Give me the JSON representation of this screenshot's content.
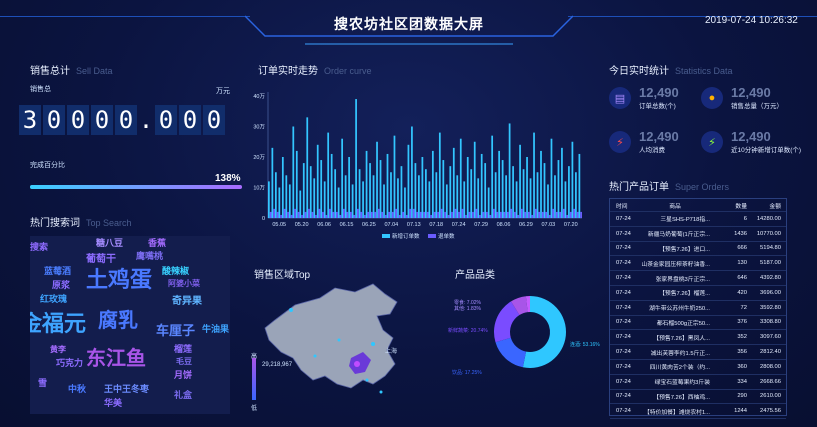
{
  "header": {
    "title": "搜农坊社区团数据大屏",
    "time": "2019-07-24 10:26:32"
  },
  "sales": {
    "title": "销售总计",
    "title_en": "Sell Data",
    "total_label": "销售总",
    "unit": "万元",
    "total_digits": [
      "3",
      "0",
      "0",
      "0",
      "0",
      ".",
      "0",
      "0",
      "0"
    ],
    "completion_label": "完成百分比",
    "completion_pct": "138%",
    "completion_fraction": 1.0
  },
  "search": {
    "title": "热门搜索词",
    "title_en": "Top Search",
    "words": [
      {
        "t": "搜索",
        "c": "#8f6bff",
        "s": 9
      },
      {
        "t": "糖八豆",
        "c": "#a58cff",
        "s": 9
      },
      {
        "t": "葡萄干",
        "c": "#8d6cff",
        "s": 10
      },
      {
        "t": "鹰嘴桃",
        "c": "#7b6cf0",
        "s": 9
      },
      {
        "t": "香蕉",
        "c": "#a46cff",
        "s": 9
      },
      {
        "t": "蓝莓酒",
        "c": "#4a7dff",
        "s": 9
      },
      {
        "t": "土鸡蛋",
        "c": "#4a79ff",
        "s": 22
      },
      {
        "t": "酸辣椒",
        "c": "#38d1ff",
        "s": 9
      },
      {
        "t": "原浆",
        "c": "#8b6cff",
        "s": 9
      },
      {
        "t": "阿婆小菜",
        "c": "#7c5ee8",
        "s": 8
      },
      {
        "t": "红玫瑰",
        "c": "#3ea4ff",
        "s": 9
      },
      {
        "t": "奇异果",
        "c": "#5fb4ff",
        "s": 10
      },
      {
        "t": "金福元",
        "c": "#3ea4ff",
        "s": 22
      },
      {
        "t": "腐乳",
        "c": "#4a79ff",
        "s": 20
      },
      {
        "t": "车厘子",
        "c": "#5a86ff",
        "s": 13
      },
      {
        "t": "牛油果",
        "c": "#3ea4ff",
        "s": 9
      },
      {
        "t": "东江鱼",
        "c": "#a855e8",
        "s": 20
      },
      {
        "t": "黄李",
        "c": "#a46cff",
        "s": 8
      },
      {
        "t": "巧克力",
        "c": "#8d6cff",
        "s": 9
      },
      {
        "t": "榴莲",
        "c": "#8d6cff",
        "s": 9
      },
      {
        "t": "毛豆",
        "c": "#7b6cf0",
        "s": 8
      },
      {
        "t": "月饼",
        "c": "#a46cff",
        "s": 9
      },
      {
        "t": "雪",
        "c": "#8d6cff",
        "s": 9
      },
      {
        "t": "中秋",
        "c": "#4a79ff",
        "s": 9
      },
      {
        "t": "王中王冬枣",
        "c": "#6c8cff",
        "s": 9
      },
      {
        "t": "华美",
        "c": "#8b6cff",
        "s": 9
      },
      {
        "t": "礼盒",
        "c": "#7b6cf0",
        "s": 9
      }
    ]
  },
  "orders": {
    "title": "订单实时走势",
    "title_en": "Order curve",
    "legend": [
      "新增订单数",
      "退单数"
    ]
  },
  "chart_data": {
    "type": "bar",
    "x_ticks": [
      "05.05",
      "05.20",
      "06.06",
      "06.15",
      "06.25",
      "07.04",
      "07.13",
      "07.18",
      "07.24",
      "07.29",
      "08.06",
      "06.29",
      "07.03",
      "07.20"
    ],
    "y_ticks": [
      "0",
      "10万",
      "20万",
      "30万",
      "40万"
    ],
    "ylim": [
      0,
      40
    ],
    "series": [
      {
        "name": "新增订单数",
        "color": "#33c6ff",
        "values": [
          12,
          23,
          15,
          10,
          20,
          14,
          11,
          30,
          22,
          9,
          18,
          33,
          17,
          13,
          24,
          19,
          12,
          28,
          21,
          16,
          10,
          26,
          14,
          20,
          11,
          39,
          16,
          12,
          22,
          18,
          14,
          25,
          19,
          11,
          21,
          15,
          27,
          13,
          17,
          10,
          24,
          30,
          18,
          14,
          20,
          16,
          12,
          22,
          15,
          28,
          19,
          11,
          17,
          23,
          14,
          26,
          12,
          20,
          16,
          25,
          13,
          21,
          18,
          10,
          27,
          15,
          22,
          19,
          14,
          31,
          17,
          12,
          24,
          16,
          20,
          13,
          28,
          15,
          22,
          18,
          11,
          26,
          14,
          19,
          23,
          12,
          17,
          25,
          15,
          21
        ]
      },
      {
        "name": "退单数",
        "color": "#6a5cff",
        "values": [
          2,
          3,
          2,
          1,
          3,
          2,
          1,
          3,
          2,
          1,
          2,
          3,
          2,
          1,
          3,
          2,
          1,
          3,
          2,
          2,
          1,
          3,
          2,
          2,
          1,
          3,
          2,
          1,
          2,
          2,
          2,
          3,
          2,
          1,
          2,
          2,
          3,
          1,
          2,
          1,
          3,
          3,
          2,
          2,
          2,
          2,
          1,
          2,
          2,
          3,
          2,
          1,
          2,
          3,
          2,
          3,
          1,
          2,
          2,
          3,
          1,
          2,
          2,
          1,
          3,
          2,
          2,
          2,
          2,
          3,
          2,
          1,
          3,
          2,
          2,
          1,
          3,
          2,
          2,
          2,
          1,
          3,
          2,
          2,
          3,
          1,
          2,
          3,
          2,
          2
        ]
      }
    ]
  },
  "region": {
    "title": "销售区域Top",
    "legend_high": "高",
    "legend_low": "低",
    "value_label": "29,218,967",
    "city_label": "上海"
  },
  "category": {
    "title": "产品品类",
    "slices": [
      {
        "label": "连酒: 53.16%",
        "value": 53.16,
        "color": "#2fc7ff"
      },
      {
        "label": "饮品: 17.25%",
        "value": 17.25,
        "color": "#3a66ff"
      },
      {
        "label": "新鲜蔬菜: 20.74%",
        "value": 20.74,
        "color": "#7a4cff"
      },
      {
        "label": "零食: 7.02%",
        "value": 7.02,
        "color": "#a855e8"
      },
      {
        "label": "其他: 1.83%",
        "value": 1.83,
        "color": "#c45cff"
      }
    ]
  },
  "today": {
    "title": "今日实时统计",
    "title_en": "Statistics Data",
    "items": [
      {
        "value": "12,490",
        "label": "订单总数(个)",
        "icon": "doc-icon",
        "color": "#a98cff"
      },
      {
        "value": "12,490",
        "label": "销售总量（万元）",
        "icon": "bulb-icon",
        "color": "#ffb100"
      },
      {
        "value": "12,490",
        "label": "人均消费",
        "icon": "bolt-icon",
        "color": "#ff4a4a"
      },
      {
        "value": "12,490",
        "label": "近10分钟新增订单数(个)",
        "icon": "bolt-icon",
        "color": "#8cff3a"
      }
    ]
  },
  "hot_orders": {
    "title": "热门产品订单",
    "title_en": "Super Orders",
    "columns": [
      "时间",
      "商品",
      "数量",
      "金额"
    ],
    "rows": [
      [
        "07-24",
        "三星SHS-P718指...",
        "6",
        "14280.00"
      ],
      [
        "07-24",
        "新疆马奶葡萄(1斤正宗...",
        "1436",
        "10770.00"
      ],
      [
        "07-24",
        "【预售7.26】进口...",
        "666",
        "5194.80"
      ],
      [
        "07-24",
        "山茶金家园压榨茶籽油香...",
        "130",
        "5187.00"
      ],
      [
        "07-24",
        "张家界盘桃3斤正宗...",
        "646",
        "4392.80"
      ],
      [
        "07-24",
        "【预售7.26】榴莲...",
        "420",
        "3696.00"
      ],
      [
        "07-24",
        "湖牛带公苏州牛奶250...",
        "72",
        "3592.80"
      ],
      [
        "07-24",
        "都石榴500g正宗50...",
        "376",
        "3308.80"
      ],
      [
        "07-24",
        "【预售7.26】黑凤人...",
        "352",
        "3097.60"
      ],
      [
        "07-24",
        "减出芙蓉李约1.5斤正...",
        "356",
        "2812.40"
      ],
      [
        "07-24",
        "四川黄肉苦2个装（约...",
        "360",
        "2808.00"
      ],
      [
        "07-24",
        "绿宝石蓝莓果约3斤装",
        "334",
        "2668.66"
      ],
      [
        "07-24",
        "【预售7.26】西柚鸡...",
        "290",
        "2610.00"
      ],
      [
        "07-24",
        "【特价加餐】滩烧农村1...",
        "1244",
        "2475.56"
      ]
    ]
  }
}
